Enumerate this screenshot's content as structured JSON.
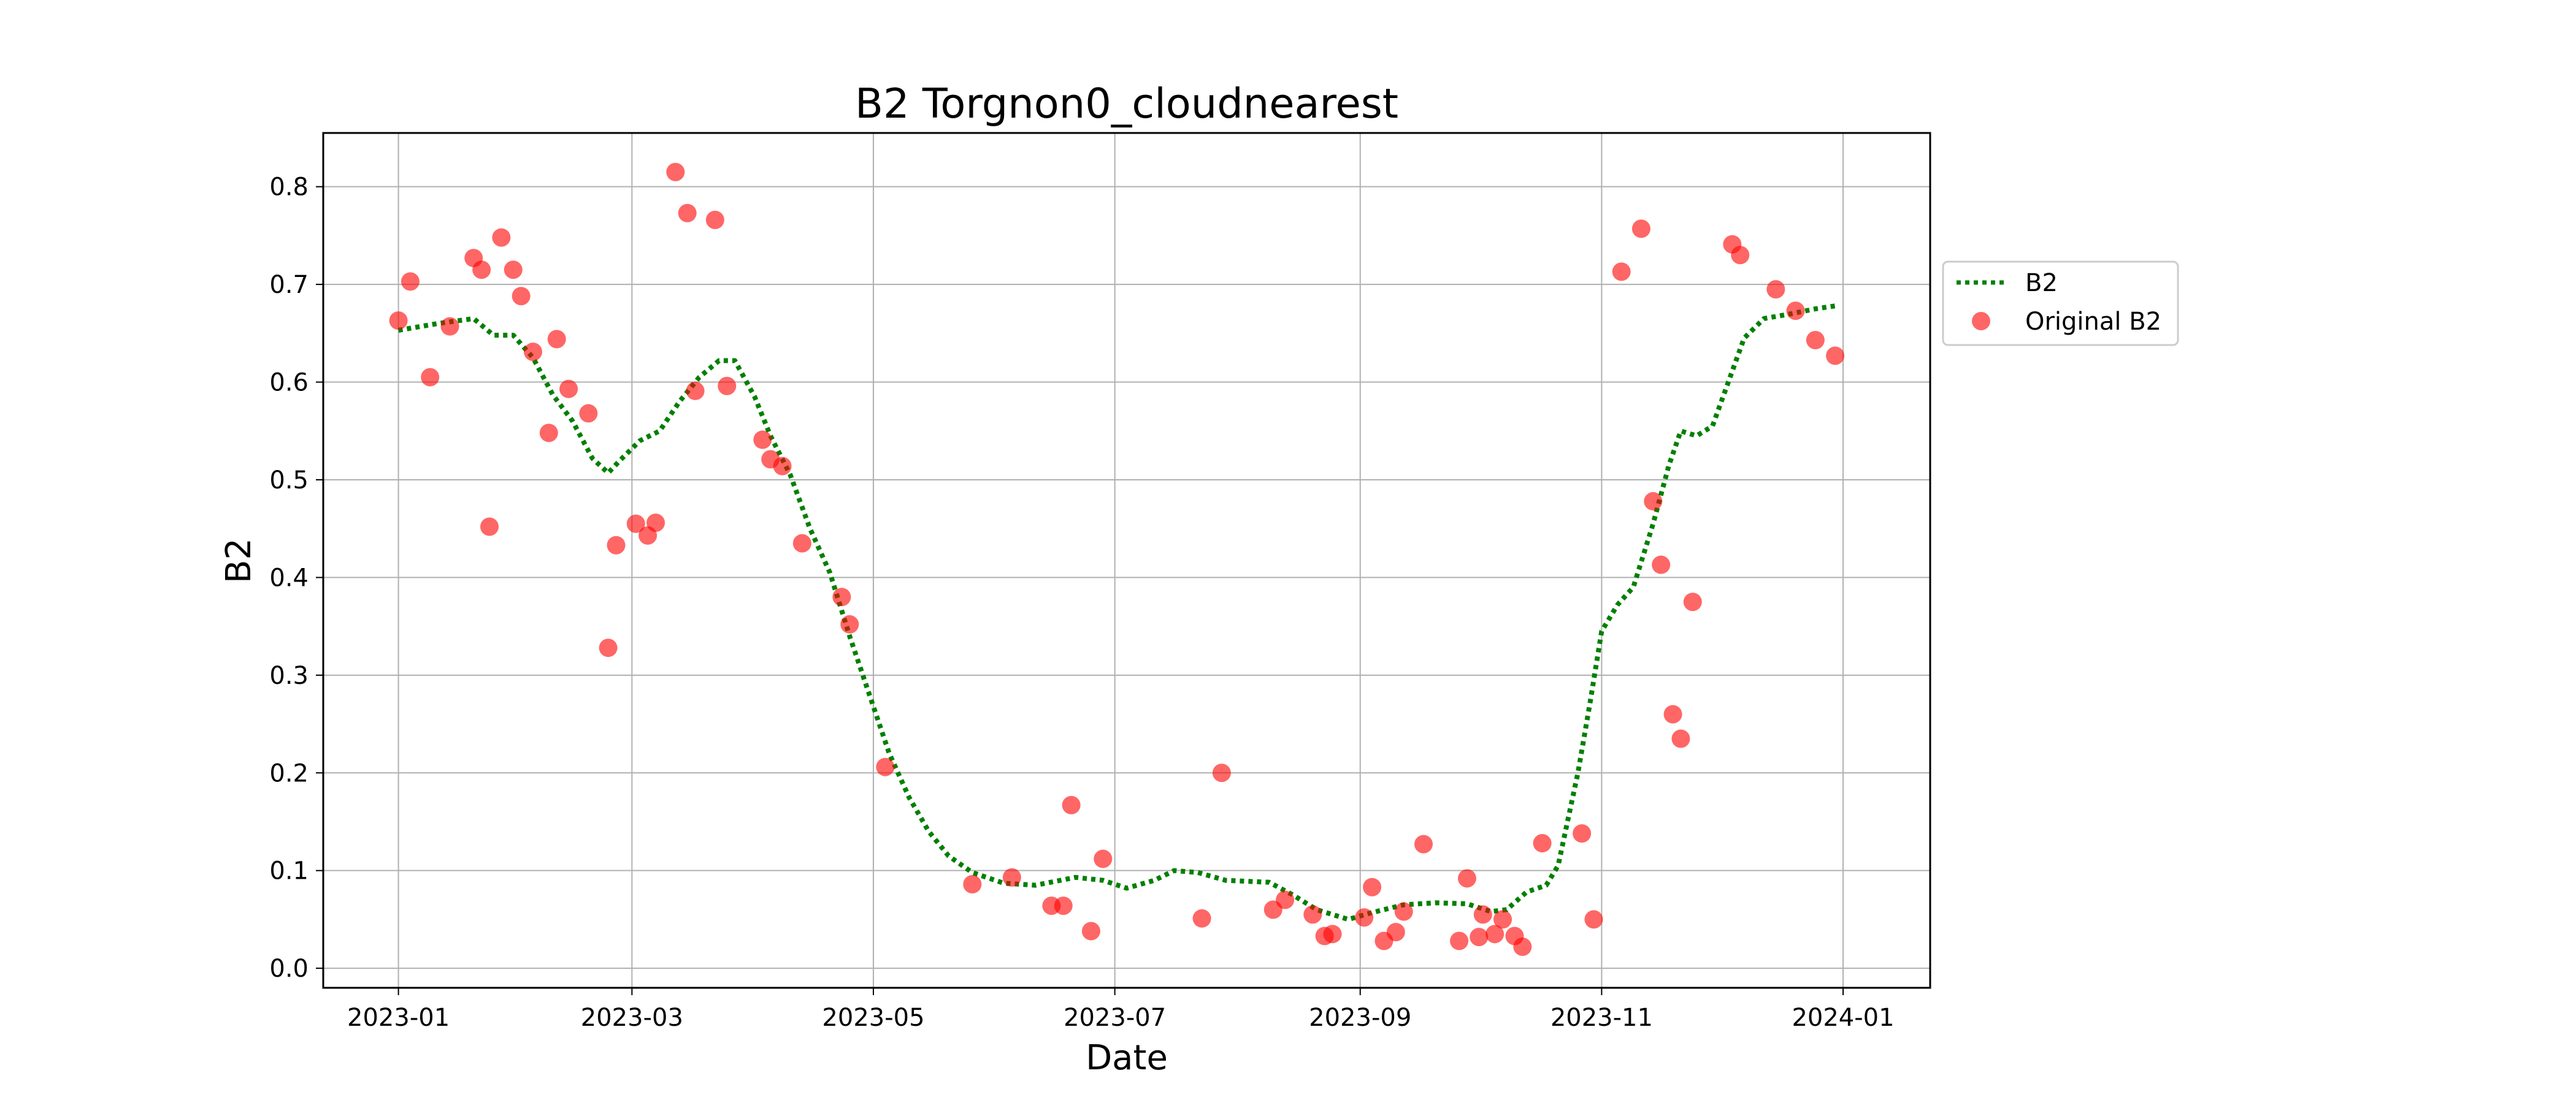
{
  "chart_data": {
    "type": "line",
    "title": "B2 Torgnon0_cloudnearest",
    "xlabel": "Date",
    "ylabel": "B2",
    "xlim": [
      "2022-12-13",
      "2024-01-23"
    ],
    "ylim": [
      -0.02,
      0.855
    ],
    "grid": true,
    "legend_position": "outside-right",
    "x_ticks": [
      "2023-01",
      "2023-03",
      "2023-05",
      "2023-07",
      "2023-09",
      "2023-11",
      "2024-01"
    ],
    "y_ticks": [
      "0.0",
      "0.1",
      "0.2",
      "0.3",
      "0.4",
      "0.5",
      "0.6",
      "0.7",
      "0.8"
    ],
    "colors": {
      "line": "#008000",
      "points": "#ff0000"
    },
    "series": [
      {
        "name": "B2",
        "style": "dotted-line",
        "points": [
          [
            "2023-01-01",
            0.653
          ],
          [
            "2023-01-11",
            0.66
          ],
          [
            "2023-01-20",
            0.665
          ],
          [
            "2023-01-25",
            0.648
          ],
          [
            "2023-01-30",
            0.648
          ],
          [
            "2023-02-04",
            0.625
          ],
          [
            "2023-02-09",
            0.587
          ],
          [
            "2023-02-14",
            0.56
          ],
          [
            "2023-02-19",
            0.522
          ],
          [
            "2023-02-23",
            0.507
          ],
          [
            "2023-02-26",
            0.52
          ],
          [
            "2023-03-03",
            0.54
          ],
          [
            "2023-03-08",
            0.55
          ],
          [
            "2023-03-13",
            0.58
          ],
          [
            "2023-03-18",
            0.605
          ],
          [
            "2023-03-23",
            0.622
          ],
          [
            "2023-03-27",
            0.622
          ],
          [
            "2023-04-01",
            0.585
          ],
          [
            "2023-04-05",
            0.545
          ],
          [
            "2023-04-10",
            0.505
          ],
          [
            "2023-04-15",
            0.45
          ],
          [
            "2023-04-20",
            0.405
          ],
          [
            "2023-04-25",
            0.34
          ],
          [
            "2023-04-30",
            0.28
          ],
          [
            "2023-05-05",
            0.22
          ],
          [
            "2023-05-10",
            0.175
          ],
          [
            "2023-05-15",
            0.14
          ],
          [
            "2023-05-20",
            0.115
          ],
          [
            "2023-05-26",
            0.098
          ],
          [
            "2023-06-03",
            0.087
          ],
          [
            "2023-06-11",
            0.085
          ],
          [
            "2023-06-21",
            0.093
          ],
          [
            "2023-06-28",
            0.09
          ],
          [
            "2023-07-04",
            0.082
          ],
          [
            "2023-07-11",
            0.09
          ],
          [
            "2023-07-16",
            0.1
          ],
          [
            "2023-07-22",
            0.098
          ],
          [
            "2023-07-29",
            0.09
          ],
          [
            "2023-08-09",
            0.088
          ],
          [
            "2023-08-15",
            0.075
          ],
          [
            "2023-08-21",
            0.06
          ],
          [
            "2023-08-29",
            0.05
          ],
          [
            "2023-09-04",
            0.057
          ],
          [
            "2023-09-12",
            0.065
          ],
          [
            "2023-09-20",
            0.067
          ],
          [
            "2023-09-28",
            0.066
          ],
          [
            "2023-10-04",
            0.058
          ],
          [
            "2023-10-08",
            0.06
          ],
          [
            "2023-10-13",
            0.078
          ],
          [
            "2023-10-18",
            0.085
          ],
          [
            "2023-10-21",
            0.105
          ],
          [
            "2023-10-26",
            0.2
          ],
          [
            "2023-10-29",
            0.27
          ],
          [
            "2023-11-01",
            0.345
          ],
          [
            "2023-11-05",
            0.372
          ],
          [
            "2023-11-09",
            0.39
          ],
          [
            "2023-11-14",
            0.455
          ],
          [
            "2023-11-18",
            0.515
          ],
          [
            "2023-11-21",
            0.55
          ],
          [
            "2023-11-25",
            0.545
          ],
          [
            "2023-11-29",
            0.555
          ],
          [
            "2023-12-03",
            0.6
          ],
          [
            "2023-12-07",
            0.645
          ],
          [
            "2023-12-12",
            0.665
          ],
          [
            "2023-12-19",
            0.67
          ],
          [
            "2023-12-25",
            0.675
          ],
          [
            "2023-12-30",
            0.678
          ]
        ]
      },
      {
        "name": "Original B2",
        "style": "scatter",
        "points": [
          [
            "2023-01-01",
            0.663
          ],
          [
            "2023-01-04",
            0.703
          ],
          [
            "2023-01-09",
            0.605
          ],
          [
            "2023-01-14",
            0.657
          ],
          [
            "2023-01-20",
            0.727
          ],
          [
            "2023-01-22",
            0.715
          ],
          [
            "2023-01-24",
            0.452
          ],
          [
            "2023-01-27",
            0.748
          ],
          [
            "2023-01-30",
            0.715
          ],
          [
            "2023-02-01",
            0.688
          ],
          [
            "2023-02-04",
            0.631
          ],
          [
            "2023-02-08",
            0.548
          ],
          [
            "2023-02-10",
            0.644
          ],
          [
            "2023-02-13",
            0.593
          ],
          [
            "2023-02-18",
            0.568
          ],
          [
            "2023-02-23",
            0.328
          ],
          [
            "2023-02-25",
            0.433
          ],
          [
            "2023-03-02",
            0.455
          ],
          [
            "2023-03-05",
            0.443
          ],
          [
            "2023-03-07",
            0.456
          ],
          [
            "2023-03-12",
            0.815
          ],
          [
            "2023-03-15",
            0.773
          ],
          [
            "2023-03-17",
            0.591
          ],
          [
            "2023-03-22",
            0.766
          ],
          [
            "2023-03-25",
            0.596
          ],
          [
            "2023-04-03",
            0.541
          ],
          [
            "2023-04-05",
            0.521
          ],
          [
            "2023-04-08",
            0.514
          ],
          [
            "2023-04-13",
            0.435
          ],
          [
            "2023-04-23",
            0.38
          ],
          [
            "2023-04-25",
            0.352
          ],
          [
            "2023-05-04",
            0.206
          ],
          [
            "2023-05-26",
            0.086
          ],
          [
            "2023-06-05",
            0.093
          ],
          [
            "2023-06-15",
            0.064
          ],
          [
            "2023-06-18",
            0.064
          ],
          [
            "2023-06-20",
            0.167
          ],
          [
            "2023-06-25",
            0.038
          ],
          [
            "2023-06-28",
            0.112
          ],
          [
            "2023-07-23",
            0.051
          ],
          [
            "2023-07-28",
            0.2
          ],
          [
            "2023-08-10",
            0.06
          ],
          [
            "2023-08-13",
            0.07
          ],
          [
            "2023-08-20",
            0.055
          ],
          [
            "2023-08-23",
            0.033
          ],
          [
            "2023-08-25",
            0.035
          ],
          [
            "2023-09-02",
            0.052
          ],
          [
            "2023-09-04",
            0.083
          ],
          [
            "2023-09-07",
            0.028
          ],
          [
            "2023-09-10",
            0.037
          ],
          [
            "2023-09-12",
            0.058
          ],
          [
            "2023-09-17",
            0.127
          ],
          [
            "2023-09-26",
            0.028
          ],
          [
            "2023-09-28",
            0.092
          ],
          [
            "2023-10-01",
            0.032
          ],
          [
            "2023-10-02",
            0.055
          ],
          [
            "2023-10-05",
            0.035
          ],
          [
            "2023-10-07",
            0.05
          ],
          [
            "2023-10-10",
            0.033
          ],
          [
            "2023-10-12",
            0.022
          ],
          [
            "2023-10-17",
            0.128
          ],
          [
            "2023-10-27",
            0.138
          ],
          [
            "2023-10-30",
            0.05
          ],
          [
            "2023-11-06",
            0.713
          ],
          [
            "2023-11-11",
            0.757
          ],
          [
            "2023-11-14",
            0.478
          ],
          [
            "2023-11-16",
            0.413
          ],
          [
            "2023-11-19",
            0.26
          ],
          [
            "2023-11-21",
            0.235
          ],
          [
            "2023-11-24",
            0.375
          ],
          [
            "2023-12-04",
            0.741
          ],
          [
            "2023-12-06",
            0.73
          ],
          [
            "2023-12-15",
            0.695
          ],
          [
            "2023-12-20",
            0.673
          ],
          [
            "2023-12-25",
            0.643
          ],
          [
            "2023-12-30",
            0.627
          ]
        ]
      }
    ]
  }
}
